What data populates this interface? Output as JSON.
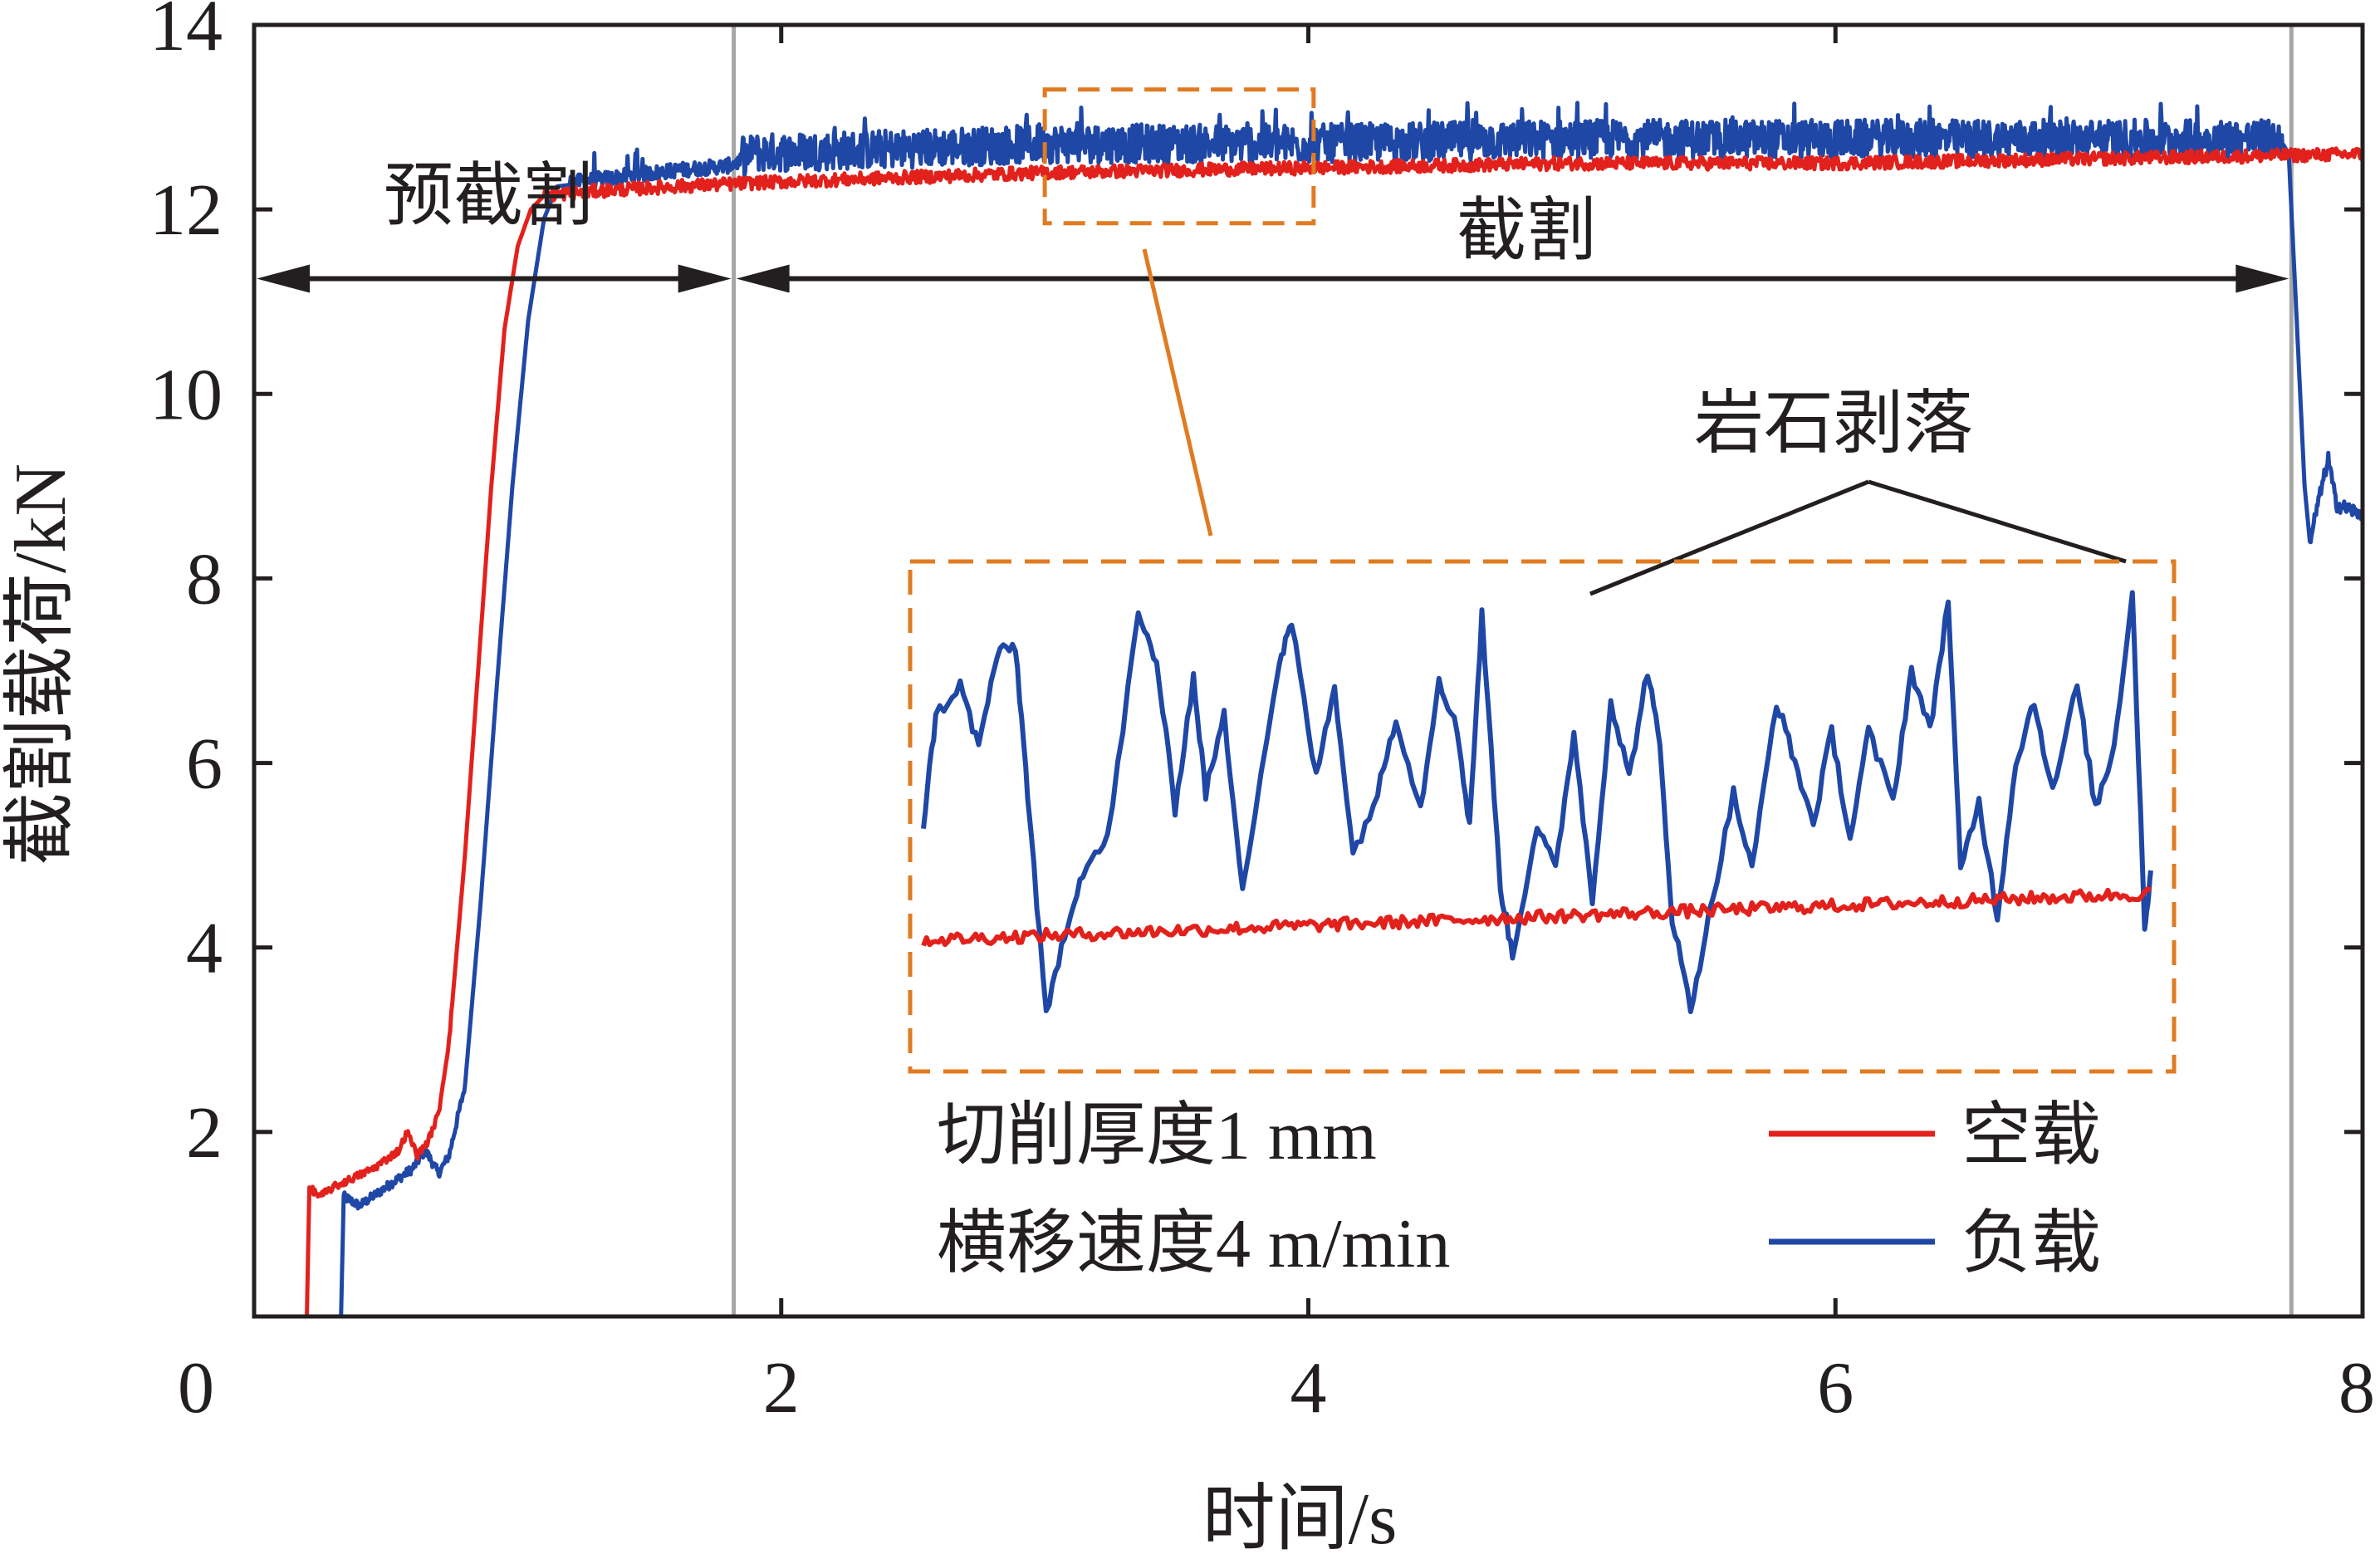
{
  "chart_data": {
    "type": "line",
    "xlabel": "时间/s",
    "ylabel": "截割载荷/kN",
    "xlim": [
      0,
      8
    ],
    "ylim": [
      0,
      14
    ],
    "x_ticks": [
      0,
      2,
      4,
      6,
      8
    ],
    "y_ticks": [
      2,
      4,
      6,
      8,
      10,
      12,
      14
    ],
    "grid": false,
    "legend_position": "bottom-right",
    "colors": {
      "empty": "#e3211c",
      "loaded": "#1f47a6",
      "annotation": "#e07b22",
      "divider": "#a6a6a6",
      "text": "#231f20"
    },
    "series": [
      {
        "name": "空载",
        "color": "#e3211c",
        "points": [
          [
            0,
            0
          ],
          [
            0.2,
            0
          ],
          [
            0.21,
            1.4
          ],
          [
            0.25,
            1.3
          ],
          [
            0.3,
            1.4
          ],
          [
            0.45,
            1.6
          ],
          [
            0.55,
            1.8
          ],
          [
            0.58,
            2.0
          ],
          [
            0.62,
            1.75
          ],
          [
            0.66,
            1.9
          ],
          [
            0.7,
            2.2
          ],
          [
            0.74,
            3.0
          ],
          [
            0.8,
            5.0
          ],
          [
            0.85,
            7.0
          ],
          [
            0.9,
            9.0
          ],
          [
            0.95,
            10.7
          ],
          [
            1.0,
            11.6
          ],
          [
            1.05,
            12.0
          ],
          [
            1.1,
            12.15
          ],
          [
            1.3,
            12.2
          ],
          [
            1.6,
            12.25
          ],
          [
            2.0,
            12.3
          ],
          [
            3.0,
            12.4
          ],
          [
            4.0,
            12.45
          ],
          [
            5.0,
            12.5
          ],
          [
            6.0,
            12.5
          ],
          [
            7.0,
            12.55
          ],
          [
            8.0,
            12.6
          ]
        ]
      },
      {
        "name": "负载",
        "color": "#1f47a6",
        "points": [
          [
            0,
            0
          ],
          [
            0.33,
            0
          ],
          [
            0.34,
            1.3
          ],
          [
            0.4,
            1.2
          ],
          [
            0.5,
            1.4
          ],
          [
            0.6,
            1.6
          ],
          [
            0.65,
            1.8
          ],
          [
            0.7,
            1.55
          ],
          [
            0.74,
            1.75
          ],
          [
            0.8,
            2.5
          ],
          [
            0.86,
            4.5
          ],
          [
            0.92,
            6.8
          ],
          [
            0.98,
            9.0
          ],
          [
            1.04,
            10.8
          ],
          [
            1.1,
            11.9
          ],
          [
            1.15,
            12.25
          ],
          [
            1.3,
            12.3
          ],
          [
            1.6,
            12.4
          ],
          [
            1.8,
            12.45
          ],
          [
            1.9,
            12.55
          ],
          [
            2.5,
            12.6
          ],
          [
            3.0,
            12.65
          ],
          [
            4.0,
            12.65
          ],
          [
            5.0,
            12.7
          ],
          [
            6.0,
            12.7
          ],
          [
            7.0,
            12.7
          ],
          [
            7.7,
            12.7
          ],
          [
            7.72,
            12.6
          ],
          [
            7.75,
            10.8
          ],
          [
            7.78,
            9.0
          ],
          [
            7.8,
            8.4
          ],
          [
            7.83,
            8.8
          ],
          [
            7.87,
            9.3
          ],
          [
            7.9,
            8.8
          ],
          [
            8.0,
            8.7
          ]
        ]
      }
    ],
    "annotations": {
      "pre_cut": "预截割",
      "cut": "截割",
      "rock_spall": "岩石剥落",
      "cut_thickness": "切削厚度1 mm",
      "traverse_speed": "横移速度4 m/min"
    }
  }
}
